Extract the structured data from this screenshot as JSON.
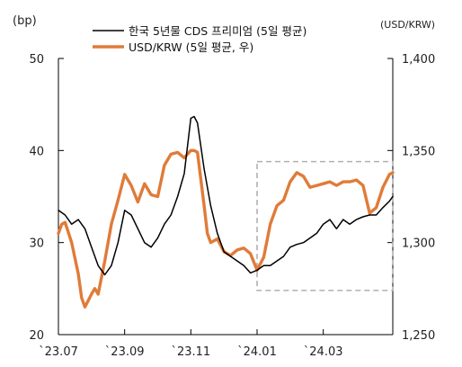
{
  "chart_data": {
    "type": "line",
    "left_unit": "(bp)",
    "right_unit": "(USD/KRW)",
    "left_axis": {
      "ylim": [
        20,
        50
      ],
      "ticks": [
        20,
        30,
        40,
        50
      ],
      "tick_labels": [
        "20",
        "30",
        "40",
        "50"
      ]
    },
    "right_axis": {
      "ylim": [
        1250,
        1400
      ],
      "ticks": [
        1250,
        1300,
        1350,
        1400
      ],
      "tick_labels": [
        "1,250",
        "1,300",
        "1,350",
        "1,400"
      ]
    },
    "x_range": [
      0,
      10.1
    ],
    "x_ticks": [
      0,
      2,
      4,
      6,
      8
    ],
    "x_tick_labels": [
      "`23.07",
      "`23.09",
      "`23.11",
      "`24.01",
      "`24.03"
    ],
    "highlight_box": {
      "x": [
        6.0,
        10.1
      ],
      "y_left": [
        24.8,
        38.8
      ]
    },
    "series": [
      {
        "name": "한국 5년물 CDS 프리미엄 (5일 평균)",
        "axis": "left",
        "color": "#000000",
        "x": [
          0.0,
          0.2,
          0.4,
          0.6,
          0.8,
          1.0,
          1.2,
          1.4,
          1.6,
          1.8,
          2.0,
          2.2,
          2.4,
          2.6,
          2.8,
          3.0,
          3.2,
          3.4,
          3.6,
          3.8,
          4.0,
          4.1,
          4.2,
          4.4,
          4.6,
          4.8,
          5.0,
          5.2,
          5.4,
          5.6,
          5.8,
          6.0,
          6.2,
          6.4,
          6.6,
          6.8,
          7.0,
          7.2,
          7.4,
          7.6,
          7.8,
          8.0,
          8.2,
          8.4,
          8.6,
          8.8,
          9.0,
          9.2,
          9.4,
          9.6,
          9.8,
          10.0,
          10.1
        ],
        "values": [
          33.5,
          33.0,
          32.0,
          32.5,
          31.5,
          29.5,
          27.5,
          26.5,
          27.5,
          30.0,
          33.5,
          33.0,
          31.5,
          30.0,
          29.5,
          30.5,
          32.0,
          33.0,
          35.0,
          37.5,
          43.5,
          43.7,
          43.0,
          38.0,
          34.0,
          31.0,
          29.0,
          28.5,
          28.0,
          27.5,
          26.7,
          27.0,
          27.5,
          27.5,
          28.0,
          28.5,
          29.5,
          29.8,
          30.0,
          30.5,
          31.0,
          32.0,
          32.5,
          31.5,
          32.5,
          32.0,
          32.5,
          32.8,
          33.0,
          33.0,
          33.8,
          34.5,
          35.0
        ]
      },
      {
        "name": "USD/KRW (5일 평균, 우)",
        "axis": "right",
        "color": "#e07b39",
        "x": [
          0.0,
          0.1,
          0.2,
          0.4,
          0.6,
          0.7,
          0.8,
          1.0,
          1.1,
          1.2,
          1.4,
          1.6,
          1.8,
          2.0,
          2.2,
          2.4,
          2.6,
          2.8,
          3.0,
          3.2,
          3.4,
          3.6,
          3.8,
          4.0,
          4.1,
          4.2,
          4.4,
          4.5,
          4.6,
          4.8,
          5.0,
          5.2,
          5.4,
          5.6,
          5.8,
          6.0,
          6.2,
          6.4,
          6.6,
          6.8,
          7.0,
          7.2,
          7.4,
          7.6,
          7.8,
          8.0,
          8.2,
          8.4,
          8.6,
          8.8,
          9.0,
          9.2,
          9.4,
          9.6,
          9.8,
          10.0,
          10.1
        ],
        "values": [
          1305,
          1310,
          1311,
          1300,
          1283,
          1270,
          1265,
          1272,
          1275,
          1272,
          1290,
          1310,
          1323,
          1337,
          1331,
          1322,
          1332,
          1326,
          1325,
          1342,
          1348,
          1349,
          1346,
          1350,
          1350,
          1349,
          1320,
          1305,
          1300,
          1302,
          1295,
          1293,
          1296,
          1297,
          1294,
          1285,
          1292,
          1310,
          1320,
          1323,
          1333,
          1338,
          1336,
          1330,
          1331,
          1332,
          1333,
          1331,
          1333,
          1333,
          1334,
          1331,
          1316,
          1319,
          1330,
          1337,
          1338
        ]
      }
    ]
  }
}
